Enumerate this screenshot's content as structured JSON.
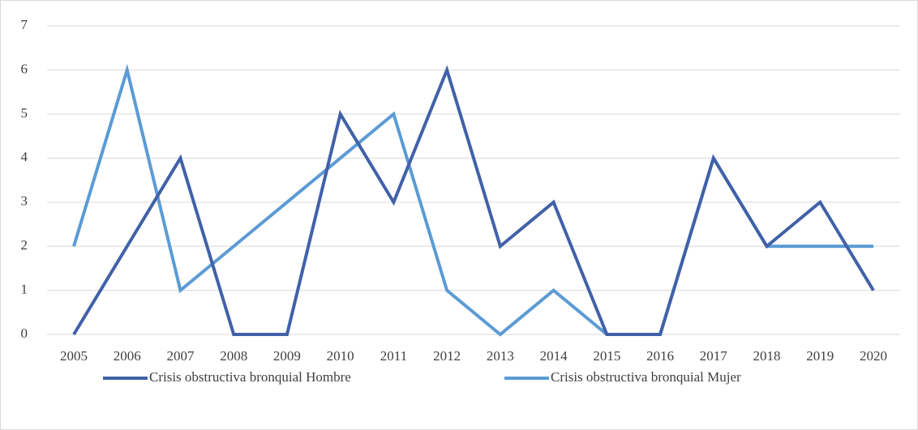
{
  "chart_data": {
    "type": "line",
    "categories": [
      "2005",
      "2006",
      "2007",
      "2008",
      "2009",
      "2010",
      "2011",
      "2012",
      "2013",
      "2014",
      "2015",
      "2016",
      "2017",
      "2018",
      "2019",
      "2020"
    ],
    "series": [
      {
        "name": "Crisis obstructiva bronquial Hombre",
        "color": "#4161a8",
        "values": [
          0,
          2,
          4,
          0,
          0,
          5,
          3,
          6,
          2,
          3,
          0,
          0,
          4,
          2,
          3,
          1
        ]
      },
      {
        "name": "Crisis obstructiva bronquial Mujer",
        "color": "#5b9bd5",
        "values": [
          2,
          6,
          1,
          2,
          3,
          4,
          5,
          1,
          0,
          1,
          0,
          0,
          4,
          2,
          2,
          2
        ]
      }
    ],
    "ylim": [
      0,
      7
    ],
    "yticks": [
      0,
      1,
      2,
      3,
      4,
      5,
      6,
      7
    ],
    "grid": true,
    "legend": "bottom"
  }
}
